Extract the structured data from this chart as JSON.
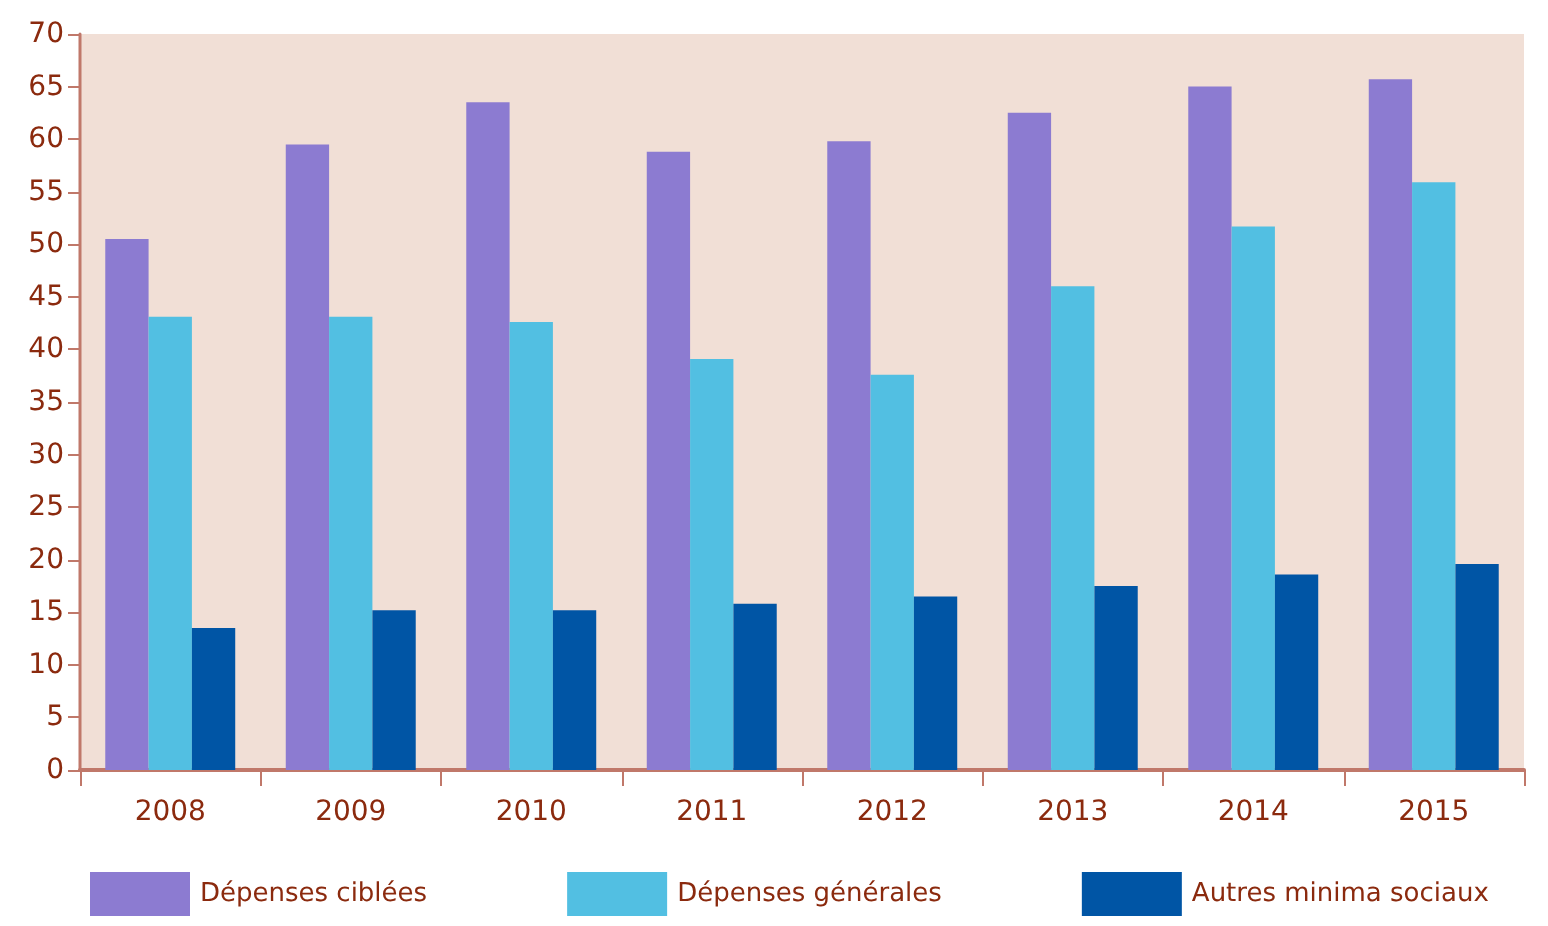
{
  "chart_data": {
    "type": "bar",
    "categories": [
      "2008",
      "2009",
      "2010",
      "2011",
      "2012",
      "2013",
      "2014",
      "2015"
    ],
    "series": [
      {
        "name": "Dépenses ciblées",
        "color": "#8c7bd1",
        "values": [
          50.5,
          59.5,
          63.5,
          58.8,
          59.8,
          62.5,
          65.0,
          65.7
        ]
      },
      {
        "name": "Dépenses générales",
        "color": "#52bfe2",
        "values": [
          43.1,
          43.1,
          42.6,
          39.1,
          37.6,
          46.0,
          51.7,
          55.9
        ]
      },
      {
        "name": "Autres minima sociaux",
        "color": "#0055a5",
        "values": [
          13.5,
          15.2,
          15.2,
          15.8,
          16.5,
          17.5,
          18.6,
          19.6
        ]
      }
    ],
    "ylim": [
      0,
      70
    ],
    "yticks": [
      0,
      5,
      10,
      15,
      20,
      25,
      30,
      35,
      40,
      45,
      50,
      55,
      60,
      65,
      70
    ],
    "grid": false,
    "legend": "bottom"
  }
}
